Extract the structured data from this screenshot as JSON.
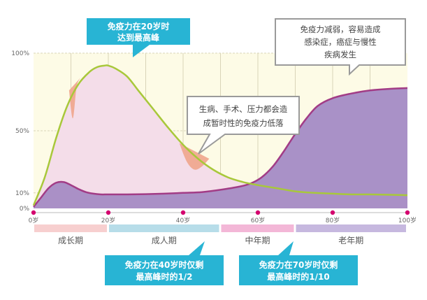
{
  "chart_data": {
    "type": "area",
    "xlim": [
      0,
      100
    ],
    "ylim": [
      0,
      100
    ],
    "x_ticks": [
      {
        "x": 0,
        "label": "0岁"
      },
      {
        "x": 20,
        "label": "20岁"
      },
      {
        "x": 40,
        "label": "40岁"
      },
      {
        "x": 60,
        "label": "60岁"
      },
      {
        "x": 80,
        "label": "80岁"
      },
      {
        "x": 100,
        "label": "100岁"
      }
    ],
    "y_ticks": [
      {
        "y": 0,
        "label": "0%"
      },
      {
        "y": 10,
        "label": "10%"
      },
      {
        "y": 50,
        "label": "50%"
      },
      {
        "y": 100,
        "label": "100%"
      }
    ],
    "series": [
      {
        "color": "#a8c83a",
        "fill": "#f4dde9",
        "x": [
          0,
          3,
          6,
          9,
          12,
          15,
          17,
          19,
          20,
          22,
          25,
          28,
          32,
          36,
          40,
          44,
          48,
          52,
          56,
          60,
          65,
          70,
          75,
          80,
          85,
          90,
          95,
          100
        ],
        "y": [
          2,
          20,
          45,
          66,
          80,
          88,
          91,
          92,
          92,
          90,
          85,
          76,
          64,
          52,
          41,
          32,
          25,
          20,
          17,
          15,
          13,
          11,
          10,
          9.5,
          9,
          9,
          8.8,
          8.5
        ]
      },
      {
        "color": "#a23c86",
        "fill": "#a58bc4",
        "x": [
          0,
          2,
          4,
          6,
          8,
          10,
          12,
          14,
          16,
          18,
          20,
          25,
          30,
          35,
          40,
          45,
          50,
          55,
          58,
          61,
          64,
          67,
          70,
          73,
          76,
          80,
          85,
          90,
          95,
          100
        ],
        "y": [
          1,
          7,
          13,
          16.5,
          17,
          15,
          12.5,
          10.5,
          9.5,
          9,
          9,
          9,
          9.2,
          9.5,
          10,
          10.5,
          12,
          14,
          16,
          20,
          27,
          37,
          48,
          58,
          66,
          71,
          74,
          76,
          77,
          77.5
        ]
      }
    ],
    "shade_fill": "#dff0f4",
    "dips": [
      {
        "x": [
          9.5,
          10.5,
          11.5,
          12.5
        ],
        "y": [
          76,
          58,
          78,
          84
        ]
      },
      {
        "x": [
          39,
          41,
          43,
          45,
          47
        ],
        "y": [
          42,
          30,
          25,
          27,
          32
        ]
      }
    ],
    "stages": [
      {
        "label": "成长期",
        "from": 0,
        "to": 20,
        "color": "#f7cfcf"
      },
      {
        "label": "成人期",
        "from": 20,
        "to": 50,
        "color": "#b7dde9"
      },
      {
        "label": "中年期",
        "from": 50,
        "to": 70,
        "color": "#f3b7d7"
      },
      {
        "label": "老年期",
        "from": 70,
        "to": 100,
        "color": "#c6b8df"
      }
    ],
    "annotations": [
      {
        "id": "peak",
        "style": "blue",
        "lines": [
          "免疫力在20岁时",
          "达到最高峰"
        ]
      },
      {
        "id": "stress",
        "style": "white",
        "lines": [
          "生病、手术、压力都会造",
          "成暂时性的免疫力低落"
        ]
      },
      {
        "id": "old",
        "style": "white",
        "lines": [
          "免疫力减弱，容易造成",
          "感染症，癌症与慢性",
          "疾病发生"
        ]
      },
      {
        "id": "forty",
        "style": "blue",
        "lines": [
          "免疫力在40岁时仅剩",
          "最高峰时的1/2"
        ]
      },
      {
        "id": "seventy",
        "style": "blue",
        "lines": [
          "免疫力在70岁时仅剩",
          "最高峰时的1/10"
        ]
      }
    ],
    "colors": {
      "plot_bg": "#fdfbe6",
      "grid": "#d9d4b8",
      "axis": "#bbbbbb",
      "dot": "#d4006e",
      "dip": "#f0a58c",
      "blue_bubble": "#28b4d4",
      "white_bubble_border": "#9a9a9a"
    }
  }
}
